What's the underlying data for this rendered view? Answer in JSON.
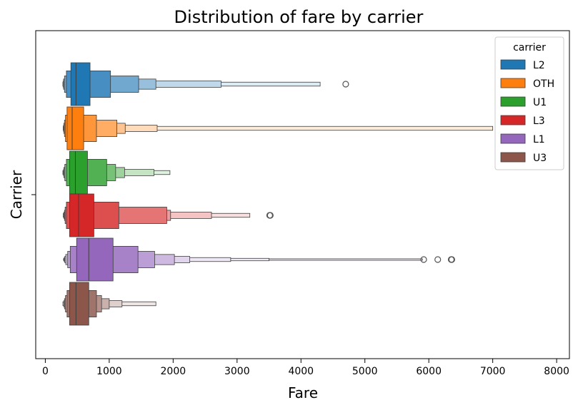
{
  "chart_data": {
    "type": "boxenplot",
    "title": "Distribution of fare by carrier",
    "xlabel": "Fare",
    "ylabel": "Carrier",
    "xlim": [
      -150,
      8200
    ],
    "xticks": [
      0,
      1000,
      2000,
      3000,
      4000,
      5000,
      6000,
      7000,
      8000
    ],
    "grid": false,
    "legend": {
      "title": "carrier",
      "placement": "top-right"
    },
    "series": [
      {
        "name": "L2",
        "color": "#1f77b4",
        "median": 480,
        "levels": [
          [
            400,
            700
          ],
          [
            330,
            1020
          ],
          [
            300,
            1460
          ],
          [
            285,
            1730
          ],
          [
            280,
            2750
          ],
          [
            275,
            4300
          ]
        ],
        "whisker_max": 4300,
        "outliers": [
          4700
        ]
      },
      {
        "name": "OTH",
        "color": "#ff7f0e",
        "median": 420,
        "levels": [
          [
            340,
            600
          ],
          [
            315,
            800
          ],
          [
            300,
            1120
          ],
          [
            290,
            1250
          ],
          [
            285,
            1750
          ],
          [
            280,
            7000
          ]
        ],
        "whisker_max": 7000,
        "outliers": []
      },
      {
        "name": "U1",
        "color": "#2ca02c",
        "median": 470,
        "levels": [
          [
            380,
            660
          ],
          [
            330,
            960
          ],
          [
            305,
            1100
          ],
          [
            290,
            1240
          ],
          [
            285,
            1700
          ],
          [
            275,
            1950
          ]
        ],
        "whisker_max": 1950,
        "outliers": []
      },
      {
        "name": "L3",
        "color": "#d62728",
        "median": 520,
        "levels": [
          [
            380,
            760
          ],
          [
            330,
            1150
          ],
          [
            310,
            1900
          ],
          [
            300,
            1960
          ],
          [
            290,
            2600
          ],
          [
            280,
            3200
          ]
        ],
        "whisker_max": 3200,
        "outliers": [
          3510,
          3520
        ]
      },
      {
        "name": "L1",
        "color": "#9467bd",
        "median": 680,
        "levels": [
          [
            490,
            1060
          ],
          [
            390,
            1450
          ],
          [
            350,
            1710
          ],
          [
            320,
            2020
          ],
          [
            305,
            2260
          ],
          [
            295,
            2900
          ],
          [
            290,
            3500
          ],
          [
            285,
            5900
          ]
        ],
        "whisker_max": 5900,
        "outliers": [
          5920,
          6140,
          6350,
          6360
        ]
      },
      {
        "name": "U3",
        "color": "#8c564b",
        "median": 480,
        "levels": [
          [
            380,
            680
          ],
          [
            340,
            800
          ],
          [
            315,
            880
          ],
          [
            300,
            1000
          ],
          [
            290,
            1200
          ],
          [
            275,
            1730
          ]
        ],
        "whisker_max": 1730,
        "outliers": []
      }
    ]
  }
}
